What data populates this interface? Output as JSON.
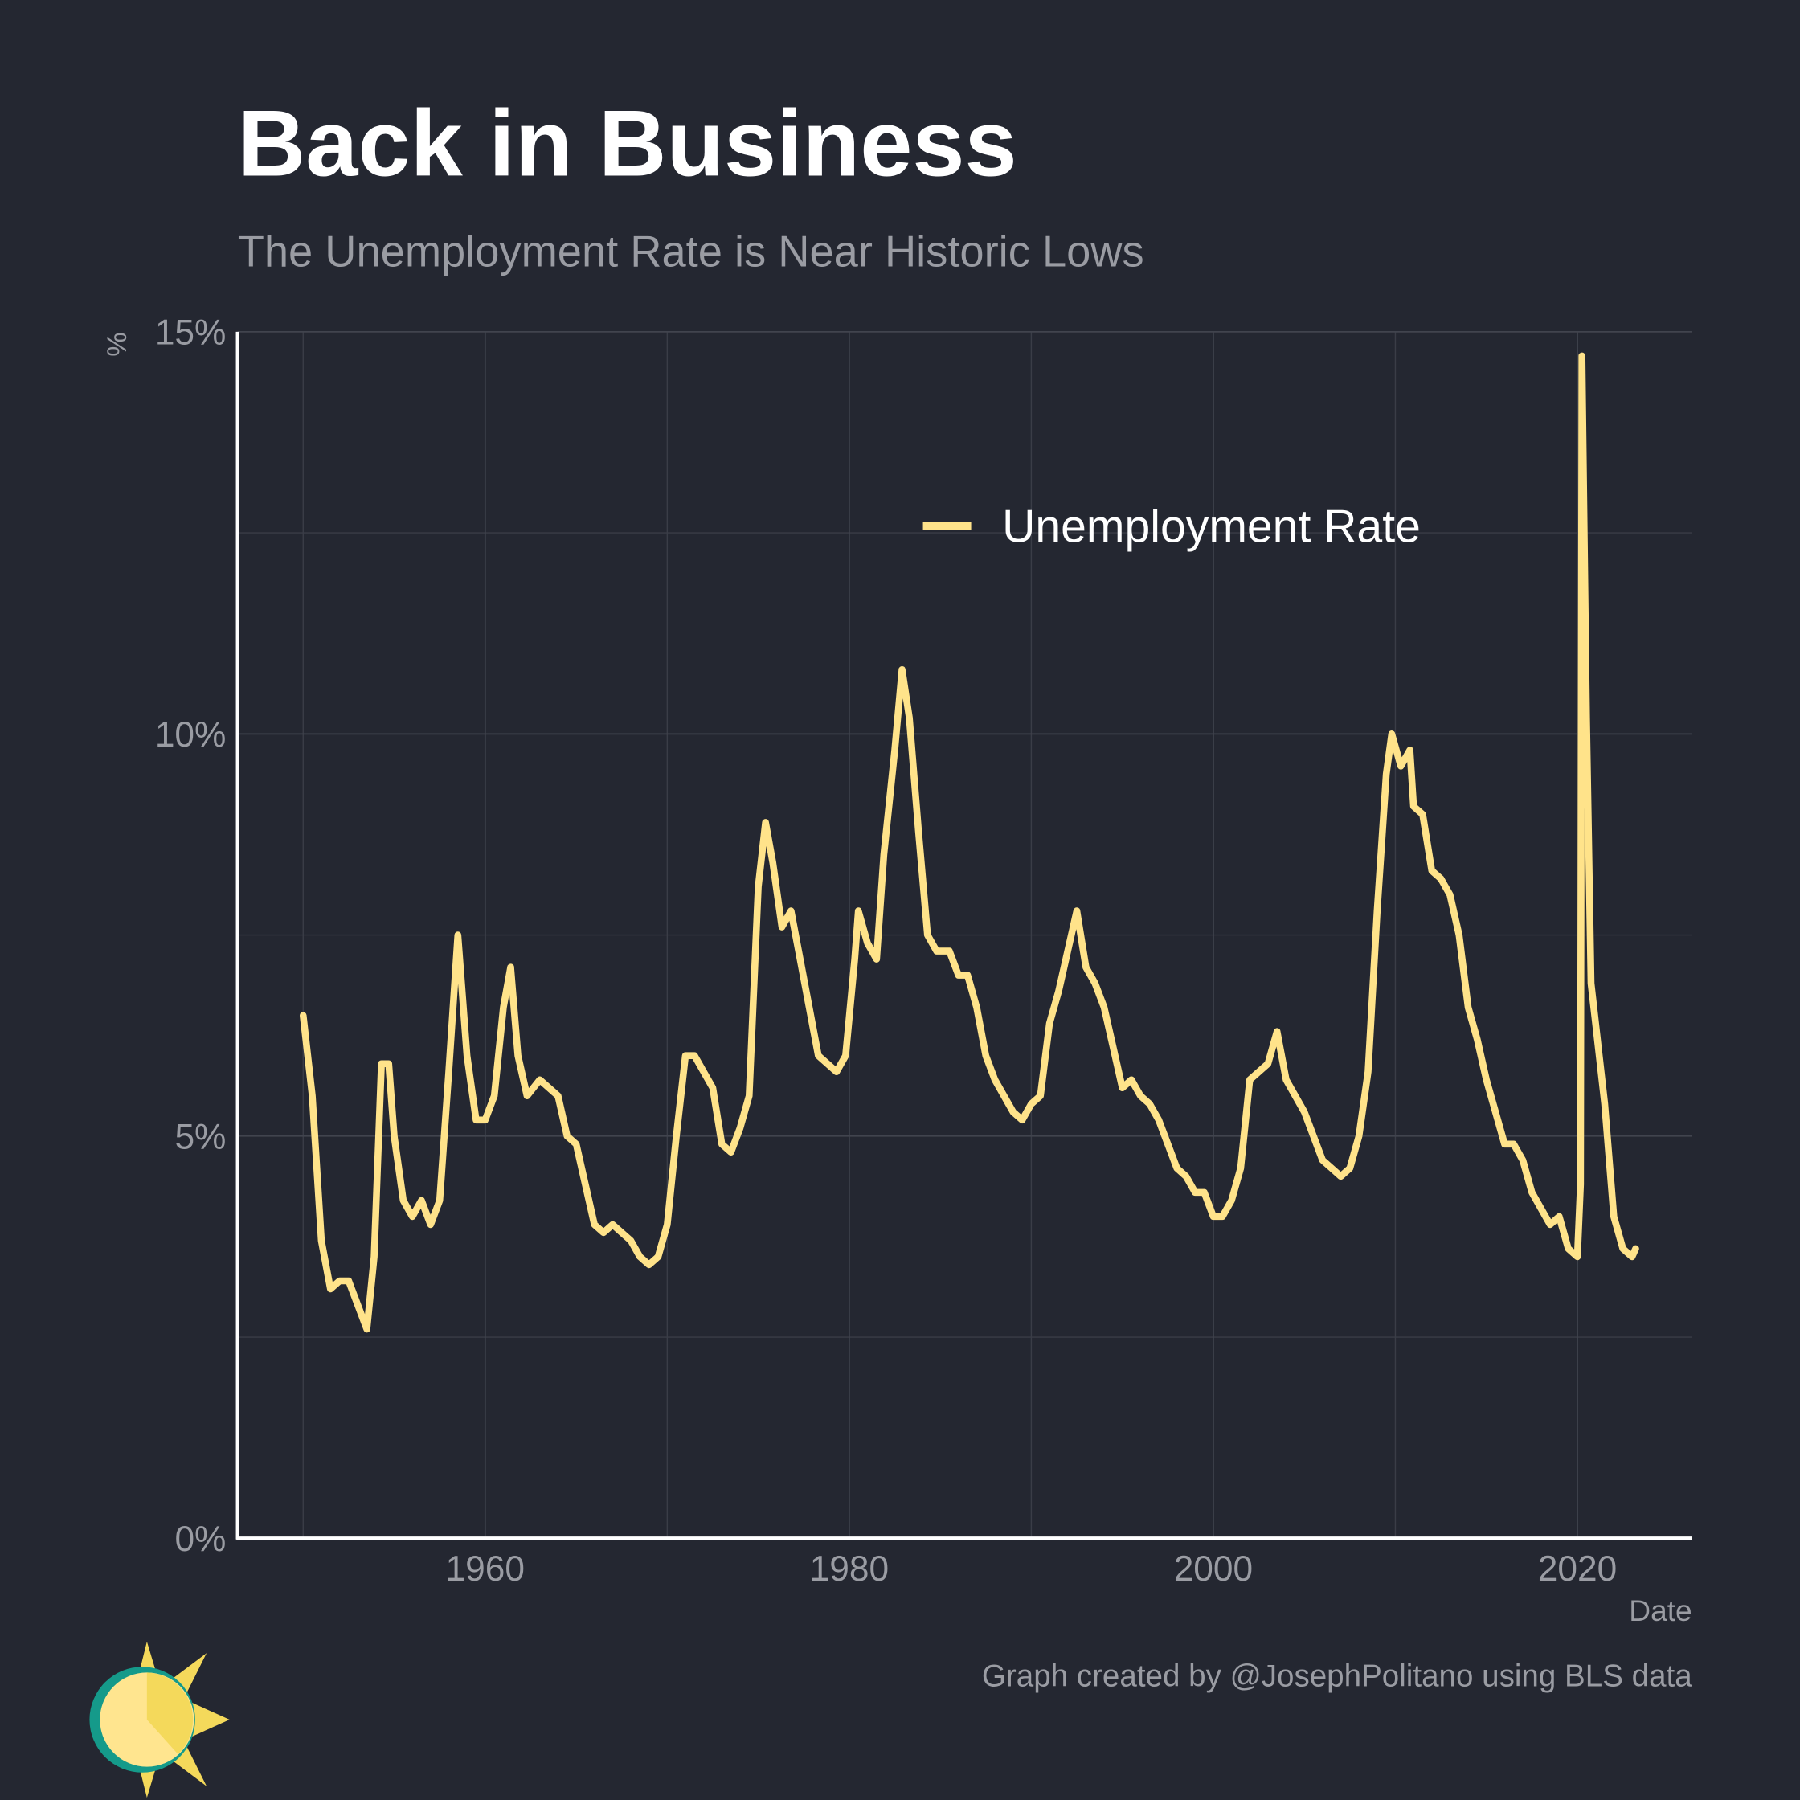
{
  "chart_data": {
    "type": "line",
    "title": "Back in Business",
    "subtitle": "The Unemployment Rate is Near Historic Lows",
    "y_label": "%",
    "x_label": "Date",
    "caption": "Graph created by @JosephPolitano using BLS data",
    "xlim": [
      1946.4,
      2026.3
    ],
    "xticks": [
      1960,
      1980,
      2000,
      2020
    ],
    "x_minor_grid": [
      1950,
      1970,
      1990,
      2010
    ],
    "ylim": [
      0,
      15
    ],
    "yticks": [
      {
        "value": 0,
        "label": "0%"
      },
      {
        "value": 5,
        "label": "5%"
      },
      {
        "value": 10,
        "label": "10%"
      },
      {
        "value": 15,
        "label": "15%"
      }
    ],
    "y_minor_grid": [
      2.5,
      7.5,
      12.5
    ],
    "grid": true,
    "legend": "top-right",
    "x": [
      1950.0,
      1950.5,
      1951.0,
      1951.5,
      1952.0,
      1952.5,
      1953.0,
      1953.5,
      1953.9,
      1954.3,
      1954.7,
      1955.0,
      1955.5,
      1956.0,
      1956.5,
      1957.0,
      1957.5,
      1958.0,
      1958.5,
      1959.0,
      1959.5,
      1960.0,
      1960.5,
      1961.0,
      1961.4,
      1961.8,
      1962.3,
      1963.0,
      1963.5,
      1964.0,
      1964.5,
      1965.0,
      1965.5,
      1966.0,
      1966.5,
      1967.0,
      1967.5,
      1968.0,
      1968.5,
      1969.0,
      1969.5,
      1970.0,
      1970.5,
      1971.0,
      1971.5,
      1972.0,
      1972.5,
      1973.0,
      1973.5,
      1974.0,
      1974.5,
      1975.0,
      1975.4,
      1975.8,
      1976.3,
      1976.8,
      1977.3,
      1977.8,
      1978.3,
      1978.8,
      1979.3,
      1979.8,
      1980.3,
      1980.5,
      1981.0,
      1981.5,
      1981.9,
      1982.5,
      1982.9,
      1983.3,
      1983.8,
      1984.3,
      1984.8,
      1985.5,
      1986.0,
      1986.5,
      1987.0,
      1987.5,
      1988.0,
      1988.5,
      1989.0,
      1989.5,
      1990.0,
      1990.5,
      1991.0,
      1991.5,
      1992.0,
      1992.5,
      1993.0,
      1993.5,
      1994.0,
      1994.5,
      1995.0,
      1995.5,
      1996.0,
      1996.5,
      1997.0,
      1997.5,
      1998.0,
      1998.5,
      1999.0,
      1999.5,
      2000.0,
      2000.5,
      2001.0,
      2001.5,
      2002.0,
      2002.5,
      2003.0,
      2003.5,
      2004.0,
      2004.5,
      2005.0,
      2005.5,
      2006.0,
      2006.5,
      2007.0,
      2007.5,
      2008.0,
      2008.5,
      2009.0,
      2009.5,
      2009.8,
      2010.3,
      2010.8,
      2011.0,
      2011.5,
      2012.0,
      2012.5,
      2013.0,
      2013.5,
      2014.0,
      2014.5,
      2015.0,
      2015.5,
      2016.0,
      2016.5,
      2017.0,
      2017.5,
      2018.0,
      2018.5,
      2019.0,
      2019.5,
      2020.0,
      2020.17,
      2020.25,
      2020.5,
      2020.75,
      2021.0,
      2021.5,
      2022.0,
      2022.5,
      2023.0,
      2023.2
    ],
    "series": [
      {
        "name": "Unemployment Rate",
        "color": "#ffe38a",
        "values": [
          6.5,
          5.5,
          3.7,
          3.1,
          3.2,
          3.2,
          2.9,
          2.6,
          3.5,
          5.9,
          5.9,
          5.0,
          4.2,
          4.0,
          4.2,
          3.9,
          4.2,
          5.8,
          7.5,
          6.0,
          5.2,
          5.2,
          5.5,
          6.6,
          7.1,
          6.0,
          5.5,
          5.7,
          5.6,
          5.5,
          5.0,
          4.9,
          4.4,
          3.9,
          3.8,
          3.9,
          3.8,
          3.7,
          3.5,
          3.4,
          3.5,
          3.9,
          5.0,
          6.0,
          6.0,
          5.8,
          5.6,
          4.9,
          4.8,
          5.1,
          5.5,
          8.1,
          8.9,
          8.4,
          7.6,
          7.8,
          7.2,
          6.6,
          6.0,
          5.9,
          5.8,
          6.0,
          7.2,
          7.8,
          7.4,
          7.2,
          8.5,
          9.8,
          10.8,
          10.2,
          8.8,
          7.5,
          7.3,
          7.3,
          7.0,
          7.0,
          6.6,
          6.0,
          5.7,
          5.5,
          5.3,
          5.2,
          5.4,
          5.5,
          6.4,
          6.8,
          7.3,
          7.8,
          7.1,
          6.9,
          6.6,
          6.1,
          5.6,
          5.7,
          5.5,
          5.4,
          5.2,
          4.9,
          4.6,
          4.5,
          4.3,
          4.3,
          4.0,
          4.0,
          4.2,
          4.6,
          5.7,
          5.8,
          5.9,
          6.3,
          5.7,
          5.5,
          5.3,
          5.0,
          4.7,
          4.6,
          4.5,
          4.6,
          5.0,
          5.8,
          7.8,
          9.5,
          10.0,
          9.6,
          9.8,
          9.1,
          9.0,
          8.3,
          8.2,
          8.0,
          7.5,
          6.6,
          6.2,
          5.7,
          5.3,
          4.9,
          4.9,
          4.7,
          4.3,
          4.1,
          3.9,
          4.0,
          3.6,
          3.5,
          4.4,
          14.7,
          10.2,
          6.9,
          6.4,
          5.4,
          4.0,
          3.6,
          3.5,
          3.6
        ]
      }
    ]
  }
}
